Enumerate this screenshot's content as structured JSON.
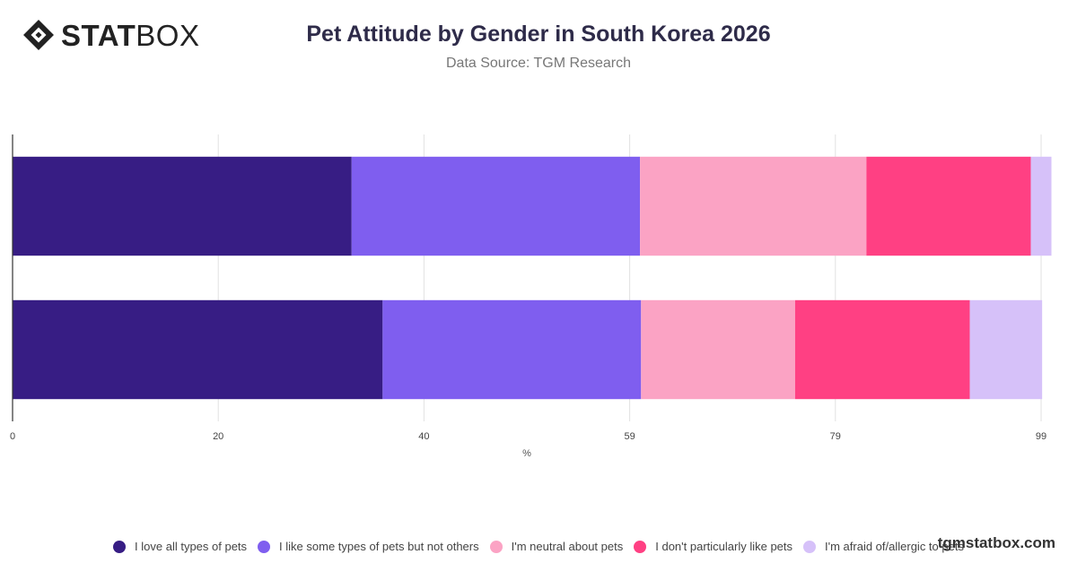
{
  "brand": {
    "bold": "STAT",
    "light": "BOX"
  },
  "watermark": "tgmstatbox.com",
  "chart_data": {
    "type": "bar",
    "orientation": "horizontal",
    "stacked": true,
    "title": "Pet Attitude by Gender in South Korea 2026",
    "subtitle": "Data Source: TGM Research",
    "xlabel": "%",
    "ylabel": "",
    "xlim": [
      0,
      99.5
    ],
    "xticks": [
      "0",
      "20",
      "40",
      "59",
      "79",
      "99"
    ],
    "xtick_values": [
      0,
      19.9,
      39.8,
      59.7,
      79.6,
      99.5
    ],
    "grid": true,
    "legend_position": "bottom",
    "categories": [
      "",
      ""
    ],
    "series": [
      {
        "name": "I love all types of pets",
        "color": "#371d84",
        "values": [
          32.8,
          35.8
        ]
      },
      {
        "name": "I like some types of pets but not others",
        "color": "#7f5eef",
        "values": [
          27.9,
          25.0
        ]
      },
      {
        "name": "I'm neutral about pets",
        "color": "#fba3c4",
        "values": [
          21.9,
          14.9
        ]
      },
      {
        "name": "I don't particularly like pets",
        "color": "#ff4083",
        "values": [
          15.9,
          16.9
        ]
      },
      {
        "name": "I'm afraid of/allergic to pets",
        "color": "#d6c1f9",
        "values": [
          2.0,
          7.0
        ]
      }
    ]
  }
}
